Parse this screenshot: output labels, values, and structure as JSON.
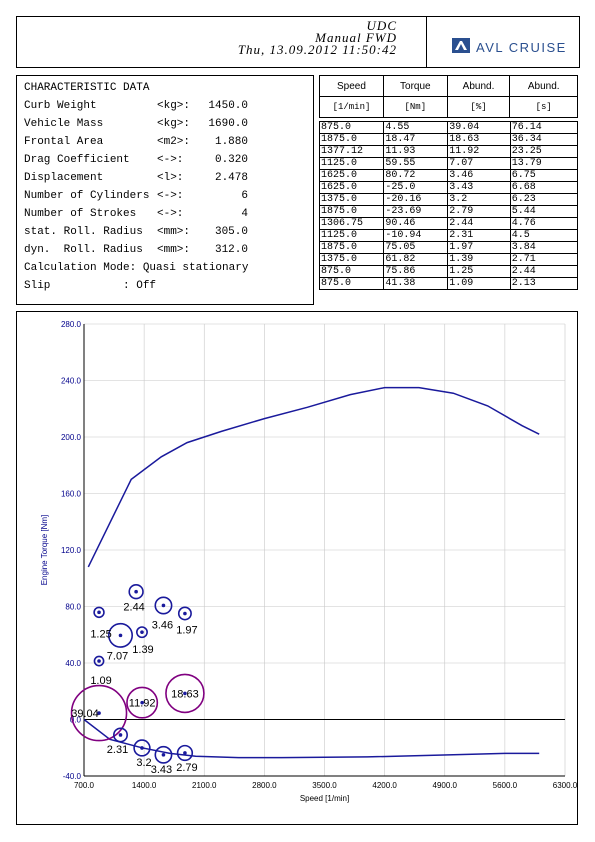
{
  "header": {
    "line1": "UDC",
    "line2": "Manual FWD",
    "line3": "Thu, 13.09.2012 11:50:42",
    "logo_text": "AVL CRUISE"
  },
  "characteristic": {
    "title": "CHARACTERISTIC DATA",
    "rows": [
      {
        "label": "Curb Weight",
        "unit": "<kg>:",
        "value": "1450.0"
      },
      {
        "label": "Vehicle Mass",
        "unit": "<kg>:",
        "value": "1690.0"
      },
      {
        "label": "Frontal Area",
        "unit": "<m2>:",
        "value": "1.880"
      },
      {
        "label": "Drag Coefficient",
        "unit": "<->:",
        "value": "0.320"
      },
      {
        "label": "Displacement",
        "unit": "<l>:",
        "value": "2.478"
      },
      {
        "label": "Number of Cylinders",
        "unit": "<->:",
        "value": "6"
      },
      {
        "label": "Number of Strokes",
        "unit": "<->:",
        "value": "4"
      },
      {
        "label": "stat. Roll. Radius",
        "unit": "<mm>:",
        "value": "305.0"
      },
      {
        "label": "dyn.  Roll. Radius",
        "unit": "<mm>:",
        "value": "312.0"
      }
    ],
    "calc_mode": "Calculation Mode: Quasi stationary",
    "slip": "Slip           : Off"
  },
  "table": {
    "headers": [
      "Speed",
      "Torque",
      "Abund.",
      "Abund."
    ],
    "units": [
      "[1/min]",
      "[Nm]",
      "[%]",
      "[s]"
    ],
    "rows": [
      [
        "875.0",
        "4.55",
        "39.04",
        "76.14"
      ],
      [
        "1875.0",
        "18.47",
        "18.63",
        "36.34"
      ],
      [
        "1377.12",
        "11.93",
        "11.92",
        "23.25"
      ],
      [
        "1125.0",
        "59.55",
        "7.07",
        "13.79"
      ],
      [
        "1625.0",
        "80.72",
        "3.46",
        "6.75"
      ],
      [
        "1625.0",
        "-25.0",
        "3.43",
        "6.68"
      ],
      [
        "1375.0",
        "-20.16",
        "3.2",
        "6.23"
      ],
      [
        "1875.0",
        "-23.69",
        "2.79",
        "5.44"
      ],
      [
        "1306.75",
        "90.46",
        "2.44",
        "4.76"
      ],
      [
        "1125.0",
        "-10.94",
        "2.31",
        "4.5"
      ],
      [
        "1875.0",
        "75.05",
        "1.97",
        "3.84"
      ],
      [
        "1375.0",
        "61.82",
        "1.39",
        "2.71"
      ],
      [
        "875.0",
        "75.86",
        "1.25",
        "2.44"
      ],
      [
        "875.0",
        "41.38",
        "1.09",
        "2.13"
      ]
    ]
  },
  "chart_data": {
    "type": "scatter",
    "xlabel": "Speed [1/min]",
    "ylabel": "Engine Torque [Nm]",
    "xlim": [
      700,
      6300
    ],
    "ylim": [
      -40,
      280
    ],
    "xticks": [
      "700.0",
      "1400.0",
      "2100.0",
      "2800.0",
      "3500.0",
      "4200.0",
      "4900.0",
      "5600.0",
      "6300.0"
    ],
    "yticks": [
      "-40.0",
      "0.0",
      "40.0",
      "80.0",
      "120.0",
      "160.0",
      "200.0",
      "240.0",
      "280.0"
    ],
    "line_color": "#1a1a9c",
    "full_load": {
      "x": [
        750,
        1250,
        1600,
        1900,
        2300,
        2800,
        3300,
        3800,
        4200,
        4600,
        5000,
        5400,
        5800,
        6000
      ],
      "y": [
        108,
        170,
        186,
        196,
        204,
        213,
        221,
        230,
        235,
        235,
        231,
        222,
        208,
        202
      ]
    },
    "motoring": {
      "x": [
        700,
        1000,
        1375,
        1700,
        2000,
        2500,
        3000,
        4000,
        5000,
        5600,
        6000
      ],
      "y": [
        0,
        -14,
        -20,
        -24,
        -26,
        -27,
        -27,
        -26.5,
        -25,
        -24,
        -24
      ]
    },
    "points": [
      {
        "x": 875.0,
        "y": 4.55,
        "abund": 39.04,
        "label": "39.04",
        "color": "#800080"
      },
      {
        "x": 1875.0,
        "y": 18.47,
        "abund": 18.63,
        "label": "18.63",
        "color": "#800080"
      },
      {
        "x": 1377.12,
        "y": 11.93,
        "abund": 11.92,
        "label": "11.92",
        "color": "#800080"
      },
      {
        "x": 1125.0,
        "y": 59.55,
        "abund": 7.07,
        "label": "7.07",
        "color": "#1a1a9c"
      },
      {
        "x": 1625.0,
        "y": 80.72,
        "abund": 3.46,
        "label": "3.46",
        "color": "#1a1a9c"
      },
      {
        "x": 1625.0,
        "y": -25.0,
        "abund": 3.43,
        "label": "3.43",
        "color": "#1a1a9c"
      },
      {
        "x": 1375.0,
        "y": -20.16,
        "abund": 3.2,
        "label": "3.2",
        "color": "#1a1a9c"
      },
      {
        "x": 1875.0,
        "y": -23.69,
        "abund": 2.79,
        "label": "2.79",
        "color": "#1a1a9c"
      },
      {
        "x": 1306.75,
        "y": 90.46,
        "abund": 2.44,
        "label": "2.44",
        "color": "#1a1a9c"
      },
      {
        "x": 1125.0,
        "y": -10.94,
        "abund": 2.31,
        "label": "2.31",
        "color": "#1a1a9c"
      },
      {
        "x": 1875.0,
        "y": 75.05,
        "abund": 1.97,
        "label": "1.97",
        "color": "#1a1a9c"
      },
      {
        "x": 1375.0,
        "y": 61.82,
        "abund": 1.39,
        "label": "1.39",
        "color": "#1a1a9c"
      },
      {
        "x": 875.0,
        "y": 75.86,
        "abund": 1.25,
        "label": "1.25",
        "color": "#1a1a9c"
      },
      {
        "x": 875.0,
        "y": 41.38,
        "abund": 1.09,
        "label": "1.09",
        "color": "#1a1a9c"
      }
    ],
    "grid": true
  }
}
